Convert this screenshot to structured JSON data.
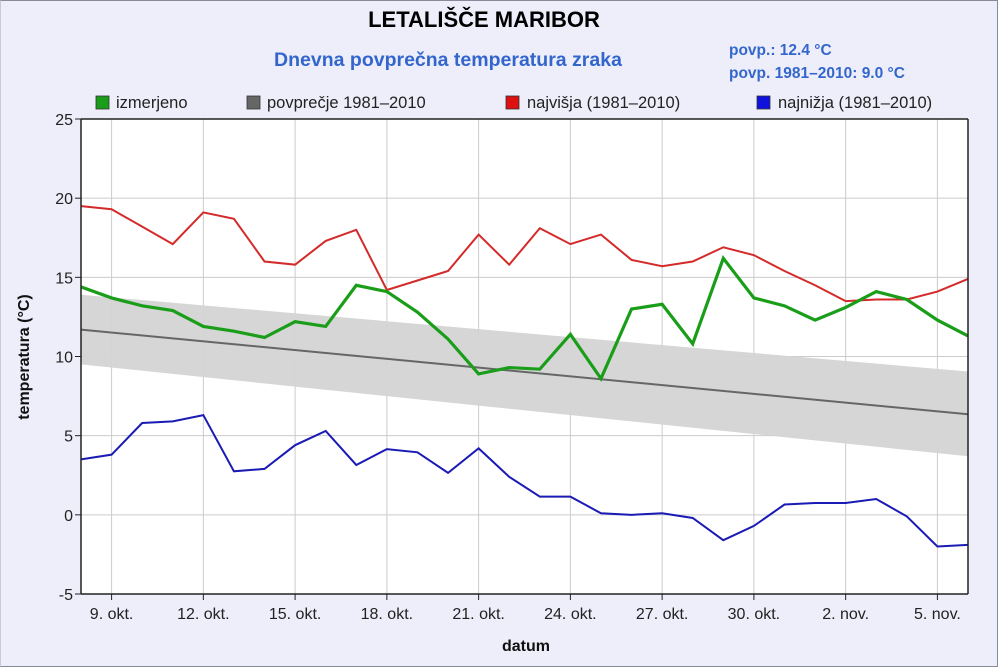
{
  "header": {
    "title": "LETALIŠČE MARIBOR",
    "subtitle": "Dnevna povprečna temperatura zraka",
    "stat_mean": "povp.: 12.4 °C",
    "stat_climate": "povp. 1981–2010: 9.0 °C"
  },
  "colors": {
    "measured": "#1a9e1a",
    "average": "#666666",
    "band": "#d4d4d4",
    "highest": "#d42a2a",
    "lowest": "#1a1ab4",
    "grid": "#cccccc",
    "axis": "#222222"
  },
  "chart_data": {
    "type": "line",
    "title": "LETALIŠČE MARIBOR",
    "subtitle": "Dnevna povprečna temperatura zraka",
    "xlabel": "datum",
    "ylabel": "temperatura (°C)",
    "ylim": [
      -5,
      25
    ],
    "yticks": [
      -5,
      0,
      5,
      10,
      15,
      20,
      25
    ],
    "x_start": "8. okt.",
    "x_end": "6. nov.",
    "n_days": 30,
    "xticks": [
      {
        "day_index": 1,
        "label": "9. okt."
      },
      {
        "day_index": 4,
        "label": "12. okt."
      },
      {
        "day_index": 7,
        "label": "15. okt."
      },
      {
        "day_index": 10,
        "label": "18. okt."
      },
      {
        "day_index": 13,
        "label": "21. okt."
      },
      {
        "day_index": 16,
        "label": "24. okt."
      },
      {
        "day_index": 19,
        "label": "27. okt."
      },
      {
        "day_index": 22,
        "label": "30. okt."
      },
      {
        "day_index": 25,
        "label": "2. nov."
      },
      {
        "day_index": 28,
        "label": "5. nov."
      }
    ],
    "grid": true,
    "legend_position": "top",
    "legend": [
      {
        "key": "measured",
        "label": "izmerjeno"
      },
      {
        "key": "average",
        "label": "povprečje 1981–2010"
      },
      {
        "key": "highest",
        "label": "najvišja (1981–2010)"
      },
      {
        "key": "lowest",
        "label": "najnižja (1981–2010)"
      }
    ],
    "series": [
      {
        "key": "highest",
        "name": "najvišja (1981–2010)",
        "values": [
          19.5,
          19.3,
          18.2,
          17.1,
          19.1,
          18.7,
          16.0,
          15.8,
          17.3,
          18.0,
          14.2,
          14.8,
          15.4,
          17.7,
          15.8,
          18.1,
          17.1,
          17.7,
          16.1,
          15.7,
          16.0,
          16.9,
          16.4,
          15.4,
          14.5,
          13.5,
          13.6,
          13.6,
          14.1,
          14.9
        ]
      },
      {
        "key": "measured",
        "name": "izmerjeno",
        "values": [
          14.4,
          13.7,
          13.2,
          12.9,
          11.9,
          11.6,
          11.2,
          12.2,
          11.9,
          14.5,
          14.1,
          12.8,
          11.1,
          8.9,
          9.3,
          9.2,
          11.4,
          8.6,
          13.0,
          13.3,
          10.8,
          16.2,
          13.7,
          13.2,
          12.3,
          13.1,
          14.1,
          13.6,
          12.3,
          11.3
        ]
      },
      {
        "key": "lowest",
        "name": "najnižja (1981–2010)",
        "values": [
          3.5,
          3.8,
          5.8,
          5.9,
          6.3,
          2.75,
          2.9,
          4.4,
          5.3,
          3.15,
          4.15,
          3.95,
          2.65,
          4.2,
          2.4,
          1.15,
          1.15,
          0.1,
          0.0,
          0.1,
          -0.2,
          -1.6,
          -0.7,
          0.65,
          0.75,
          0.75,
          1.0,
          -0.1,
          -2.0,
          -1.9
        ]
      },
      {
        "key": "average",
        "name": "povprečje 1981–2010",
        "start": 11.7,
        "end": 6.35,
        "band_upper": {
          "start": 13.9,
          "end": 9.05
        },
        "band_lower": {
          "start": 9.5,
          "end": 3.7
        }
      }
    ]
  }
}
